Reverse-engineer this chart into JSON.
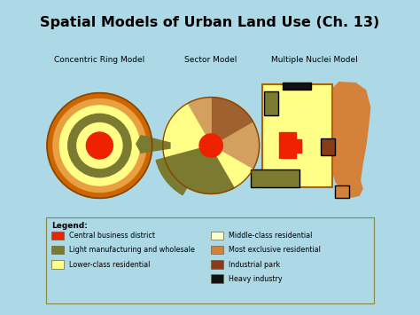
{
  "title": "Spatial Models of Urban Land Use (Ch. 13)",
  "title_bg": "#E8F060",
  "main_bg": "#C8E88A",
  "outer_bg": "#ADD8E6",
  "colors": {
    "cbd": "#EE2200",
    "light_mfg": "#7A7A30",
    "lower_res": "#FFFF88",
    "mid_res": "#FFFFCC",
    "excl_res": "#CC8833",
    "excl_res2": "#D4813A",
    "indust_park": "#8B3A1A",
    "heavy_indust": "#111111",
    "ring_outer": "#CC6600",
    "ring_orange": "#E8A040",
    "ring_yellow": "#FFFF88",
    "ring_olive": "#7A7A30",
    "sector_tan": "#D4A060",
    "sector_brown": "#A06030",
    "sector_dark": "#7A6020"
  },
  "model_labels": [
    "Concentric Ring Model",
    "Sector Model",
    "Multiple Nuclei Model"
  ]
}
